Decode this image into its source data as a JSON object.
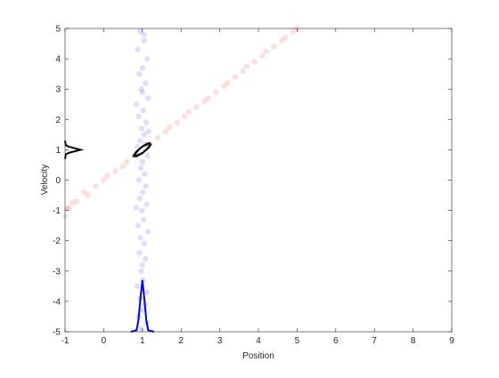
{
  "chart_data": {
    "type": "scatter",
    "xlabel": "Position",
    "ylabel": "Velocity",
    "xlim": [
      -1,
      9
    ],
    "ylim": [
      -5,
      5
    ],
    "xticks": [
      -1,
      0,
      1,
      2,
      3,
      4,
      5,
      6,
      7,
      8,
      9
    ],
    "yticks": [
      -5,
      -4,
      -3,
      -2,
      -1,
      0,
      1,
      2,
      3,
      4,
      5
    ],
    "series": [
      {
        "type": "scatter",
        "color": "#0000ff",
        "opacity": 0.13,
        "x": [
          0.95,
          1.05,
          0.88,
          1.12,
          1.0,
          0.92,
          1.08,
          0.97,
          1.15,
          0.85,
          1.02,
          0.9,
          1.1,
          0.98,
          1.04,
          0.94,
          1.07,
          0.87,
          1.13,
          1.0,
          0.96,
          1.06,
          0.91,
          1.09,
          1.01,
          0.93,
          1.11,
          0.99,
          1.03,
          0.89,
          1.14,
          0.95,
          1.05,
          0.92,
          1.08,
          1.0,
          0.97,
          1.02,
          0.86,
          1.12,
          0.94,
          1.06,
          1.0,
          0.9,
          1.1,
          0.98,
          1.04,
          1.16,
          0.84,
          1.0
        ],
        "y": [
          4.9,
          4.6,
          4.3,
          4.0,
          3.7,
          3.5,
          3.2,
          3.0,
          2.7,
          2.5,
          2.3,
          2.1,
          1.9,
          1.7,
          1.5,
          1.3,
          1.2,
          1.1,
          0.8,
          0.6,
          0.4,
          0.2,
          0.0,
          -0.2,
          -0.4,
          -0.6,
          -0.8,
          -1.0,
          -1.3,
          -1.5,
          -1.7,
          -1.9,
          -2.1,
          -2.4,
          -2.6,
          -2.8,
          -3.0,
          -3.3,
          -3.5,
          -3.7,
          -3.9,
          -4.1,
          -4.3,
          -4.5,
          -4.7,
          -4.9,
          4.8,
          1.6,
          -0.9,
          2.9
        ]
      },
      {
        "type": "scatter",
        "color": "#ff0000",
        "opacity": 0.13,
        "x": [
          -1.0,
          -0.9,
          -0.7,
          -0.5,
          -0.4,
          -0.2,
          0.0,
          0.1,
          0.3,
          0.5,
          0.6,
          0.8,
          0.9,
          1.1,
          1.2,
          1.4,
          1.6,
          1.7,
          1.9,
          2.1,
          2.2,
          2.4,
          2.6,
          2.7,
          2.9,
          3.1,
          3.2,
          3.4,
          3.6,
          3.7,
          3.9,
          4.1,
          4.2,
          4.4,
          4.6,
          4.7,
          4.9,
          5.0,
          -0.95,
          -0.8
        ],
        "y": [
          -1.2,
          -0.9,
          -0.7,
          -0.4,
          -0.5,
          -0.2,
          0.0,
          0.15,
          0.3,
          0.45,
          0.6,
          0.8,
          0.9,
          1.15,
          1.2,
          1.4,
          1.6,
          1.75,
          1.9,
          2.1,
          2.25,
          2.4,
          2.6,
          2.7,
          2.9,
          3.1,
          3.2,
          3.4,
          3.6,
          3.75,
          3.9,
          4.1,
          4.25,
          4.4,
          4.6,
          4.7,
          4.9,
          5.0,
          -0.95,
          -0.75
        ]
      },
      {
        "type": "line",
        "color": "#000000",
        "width": 2,
        "x": [
          -1.0,
          -0.98,
          -0.9,
          -0.75,
          -0.6,
          -0.75,
          -0.9,
          -0.98,
          -1.0
        ],
        "y": [
          0.7,
          0.85,
          0.9,
          0.95,
          1.0,
          1.05,
          1.1,
          1.15,
          1.3
        ]
      },
      {
        "type": "line",
        "color": "#0000ff",
        "width": 2,
        "x": [
          0.7,
          0.85,
          0.9,
          0.95,
          1.0,
          1.05,
          1.1,
          1.15,
          1.3
        ],
        "y": [
          -5,
          -4.95,
          -4.6,
          -3.9,
          -3.3,
          -3.9,
          -4.6,
          -4.95,
          -5
        ]
      },
      {
        "type": "line",
        "color": "#000000",
        "width": 2.5,
        "x": [
          1.22,
          1.156,
          1.0,
          0.844,
          0.78,
          0.844,
          1.0,
          1.156,
          1.22
        ],
        "y": [
          1.2,
          1.212,
          1.1,
          0.93,
          0.8,
          0.788,
          0.9,
          1.07,
          1.2
        ]
      },
      {
        "type": "line",
        "color": "#ffffff",
        "width": 1,
        "x": [
          1.11,
          1.078,
          1.0,
          0.922,
          0.89,
          0.922,
          1.0,
          1.078,
          1.11
        ],
        "y": [
          1.1,
          1.106,
          1.05,
          0.965,
          0.9,
          0.894,
          0.95,
          1.035,
          1.1
        ]
      }
    ]
  }
}
